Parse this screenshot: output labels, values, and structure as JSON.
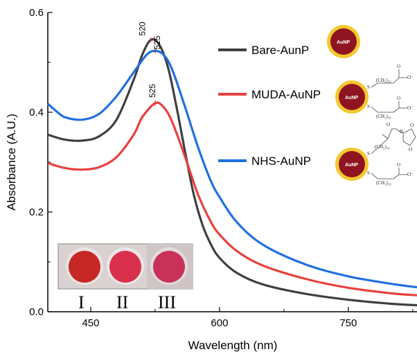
{
  "chart_data": {
    "type": "line",
    "xlabel": "Wavelength (nm)",
    "ylabel": "Absorbance (A.U.)",
    "xlim": [
      400,
      830
    ],
    "ylim": [
      0.0,
      0.6
    ],
    "x_ticks": [
      450,
      600,
      750
    ],
    "y_ticks": [
      0.0,
      0.2,
      0.4,
      0.6
    ],
    "x_tick_labels": [
      "450",
      "600",
      "750"
    ],
    "y_tick_labels": [
      "0.0",
      "0.2",
      "0.4",
      "0.6"
    ],
    "legend_position": "right",
    "series": [
      {
        "name": "Bare-AunP",
        "color": "#3f3f3f",
        "x": [
          400,
          420,
          440,
          460,
          480,
          500,
          510,
          520,
          530,
          540,
          550,
          560,
          570,
          580,
          590,
          600,
          620,
          650,
          700,
          750,
          800,
          830
        ],
        "y": [
          0.355,
          0.345,
          0.343,
          0.352,
          0.385,
          0.465,
          0.515,
          0.545,
          0.535,
          0.49,
          0.41,
          0.32,
          0.235,
          0.175,
          0.135,
          0.108,
          0.078,
          0.055,
          0.036,
          0.024,
          0.016,
          0.013
        ]
      },
      {
        "name": "MUDA-AuNP",
        "color": "#e8403c",
        "x": [
          400,
          420,
          440,
          460,
          480,
          500,
          510,
          525,
          535,
          545,
          560,
          575,
          590,
          600,
          620,
          650,
          700,
          750,
          800,
          830
        ],
        "y": [
          0.298,
          0.288,
          0.285,
          0.29,
          0.31,
          0.355,
          0.39,
          0.418,
          0.41,
          0.38,
          0.31,
          0.235,
          0.18,
          0.155,
          0.122,
          0.093,
          0.066,
          0.048,
          0.037,
          0.033
        ]
      },
      {
        "name": "NHS-AuNP",
        "color": "#1f6fe0",
        "x": [
          400,
          410,
          420,
          440,
          460,
          480,
          500,
          515,
          525,
          535,
          545,
          560,
          575,
          590,
          600,
          620,
          650,
          700,
          750,
          800,
          830
        ],
        "y": [
          0.417,
          0.402,
          0.39,
          0.385,
          0.397,
          0.432,
          0.48,
          0.515,
          0.523,
          0.515,
          0.485,
          0.41,
          0.33,
          0.262,
          0.23,
          0.18,
          0.135,
          0.095,
          0.071,
          0.056,
          0.049
        ]
      }
    ],
    "annotations": [
      {
        "text": "520",
        "x": 520,
        "y": 0.545
      },
      {
        "text": "525",
        "x": 525,
        "y": 0.523
      },
      {
        "text": "525",
        "x": 525,
        "y": 0.418
      }
    ]
  },
  "inset": {
    "well_labels": [
      "I",
      "II",
      "III"
    ]
  },
  "schematics": {
    "core_label": "AuNP",
    "muda_top_chain": "(CH₂)₁₀",
    "muda_bottom_chain": "(CH₂)₁₀",
    "nhs_top_chain": "(CH₂)₁₀",
    "nhs_bottom_chain": "(CH₂)₁₀",
    "sulfur": "S",
    "carboxylate_o": "O",
    "carboxylate_minus": "O⁻",
    "nhs_n": "N",
    "nhs_o": "O"
  }
}
